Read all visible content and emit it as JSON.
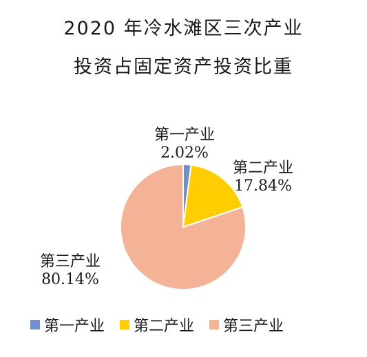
{
  "chart_data": {
    "type": "pie",
    "title_line1": "2020 年冷水滩区三次产业",
    "title_line2": "投资占固定资产投资比重",
    "slices": [
      {
        "name": "第一产业",
        "value": 2.02,
        "label": "2.02%",
        "color": "#6f8fd0"
      },
      {
        "name": "第二产业",
        "value": 17.84,
        "label": "17.84%",
        "color": "#ffcd00"
      },
      {
        "name": "第三产业",
        "value": 80.14,
        "label": "80.14%",
        "color": "#f4b397"
      }
    ],
    "legend_position": "bottom"
  }
}
